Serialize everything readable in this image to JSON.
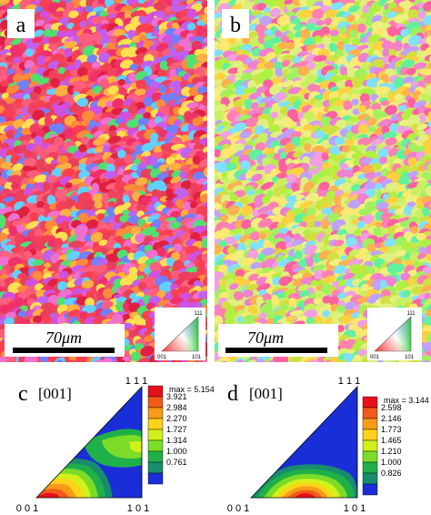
{
  "panels": {
    "a": {
      "label": "a",
      "scale_bar": "70μm",
      "key_111": "111",
      "key_001": "001",
      "key_101": "101"
    },
    "b": {
      "label": "b",
      "scale_bar": "70μm",
      "key_111": "111",
      "key_001": "001",
      "key_101": "101"
    },
    "c": {
      "label": "c",
      "direction": "[001]",
      "corner_111": "1 1 1",
      "corner_001": "0 0 1",
      "corner_101": "1 0 1",
      "legend_max": "max = 5.154",
      "legend_values": [
        "3.921",
        "2.984",
        "2.270",
        "1.727",
        "1.314",
        "1.000",
        "0.761"
      ]
    },
    "d": {
      "label": "d",
      "direction": "[001]",
      "corner_111": "1 1 1",
      "corner_001": "0 0 1",
      "corner_101": "1 0 1",
      "legend_max": "max = 3.144",
      "legend_values": [
        "2.598",
        "2.146",
        "1.773",
        "1.465",
        "1.210",
        "1.000",
        "0.826"
      ]
    }
  },
  "legend_colors": [
    "#e8101a",
    "#f25a1a",
    "#f79a1a",
    "#ffd21a",
    "#d2f01a",
    "#7cdc28",
    "#20b04a",
    "#188c6c",
    "#1a2ed8"
  ]
}
